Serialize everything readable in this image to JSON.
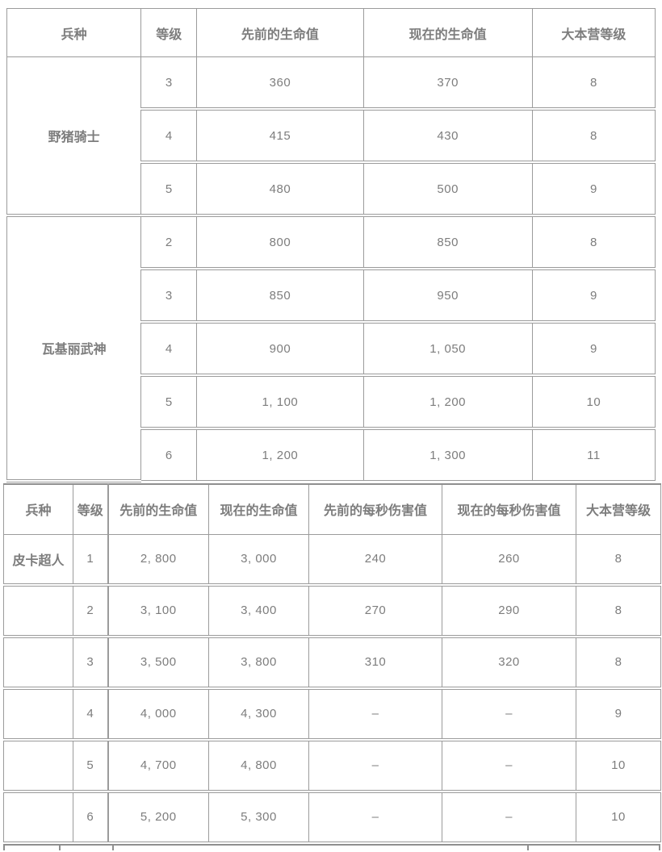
{
  "page": {
    "background": "#ffffff",
    "text_color": "#7d7d7d",
    "border_color": "#9b9b9b"
  },
  "table1": {
    "headers": [
      "兵种",
      "等级",
      "先前的生命值",
      "现在的生命值",
      "大本营等级"
    ],
    "groups": [
      {
        "name": "野猪骑士",
        "rows": [
          [
            "3",
            "360",
            "370",
            "8"
          ],
          [
            "4",
            "415",
            "430",
            "8"
          ],
          [
            "5",
            "480",
            "500",
            "9"
          ]
        ]
      },
      {
        "name": "瓦基丽武神",
        "rows": [
          [
            "2",
            "800",
            "850",
            "8"
          ],
          [
            "3",
            "850",
            "950",
            "9"
          ],
          [
            "4",
            "900",
            "1, 050",
            "9"
          ],
          [
            "5",
            "1, 100",
            "1, 200",
            "10"
          ],
          [
            "6",
            "1, 200",
            "1, 300",
            "11"
          ]
        ]
      }
    ]
  },
  "table2": {
    "headers": [
      "兵种",
      "等级",
      "先前的生命值",
      "现在的生命值",
      "先前的每秒伤害值",
      "现在的每秒伤害值",
      "大本营等级"
    ],
    "unit_name": "皮卡超人",
    "rows": [
      [
        "1",
        "2, 800",
        "3, 000",
        "240",
        "260",
        "8"
      ],
      [
        "2",
        "3, 100",
        "3, 400",
        "270",
        "290",
        "8"
      ],
      [
        "3",
        "3, 500",
        "3, 800",
        "310",
        "320",
        "8"
      ],
      [
        "4",
        "4, 000",
        "4, 300",
        "–",
        "–",
        "9"
      ],
      [
        "5",
        "4, 700",
        "4, 800",
        "–",
        "–",
        "10"
      ],
      [
        "6",
        "5, 200",
        "5, 300",
        "–",
        "–",
        "10"
      ]
    ]
  }
}
